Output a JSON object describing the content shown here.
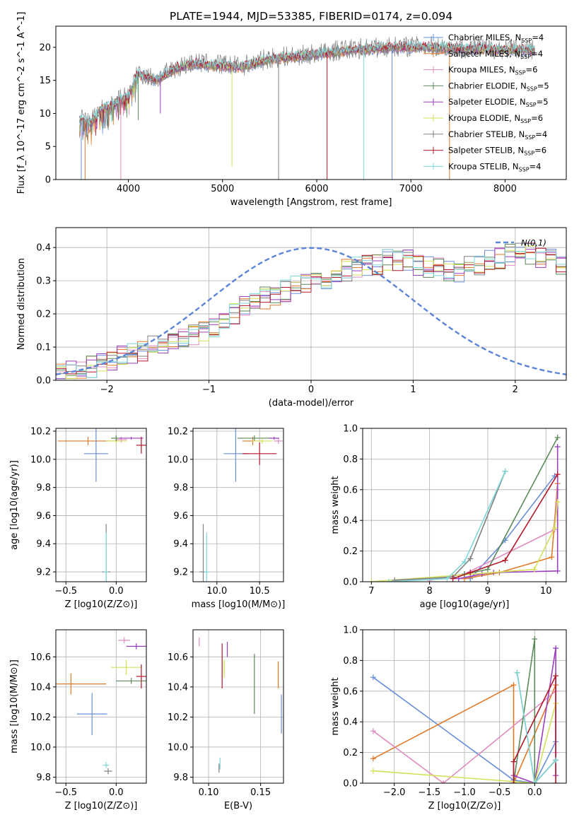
{
  "title": "PLATE=1944, MJD=53385, FIBERID=0174, z=0.094",
  "colors": {
    "Chabrier MILES": "#6a8fd8",
    "Salpeter MILES": "#e07a2a",
    "Kroupa MILES": "#e08cc0",
    "Chabrier ELODIE": "#5a8a5a",
    "Salpeter ELODIE": "#9b3fbf",
    "Kroupa ELODIE": "#d4e05a",
    "Chabrier STELIB": "#808080",
    "Salpeter STELIB": "#b2182b",
    "Kroupa STELIB": "#7fd8d8"
  },
  "chart_data": [
    {
      "id": "spectrum",
      "type": "line",
      "xlabel": "wavelength [Angstrom, rest frame]",
      "ylabel": "Flux [f_λ 10^-17 erg cm^-2 s^-1 A^-1]",
      "xlim": [
        3230,
        8650
      ],
      "ylim": [
        0,
        23.2
      ],
      "xticks": [
        4000,
        5000,
        6000,
        7000,
        8000
      ],
      "yticks": [
        0,
        5,
        10,
        15,
        20
      ],
      "legend_position": "top-right",
      "legend": [
        {
          "model": "Chabrier MILES",
          "label": "Chabrier MILES, N",
          "nssp": "=4"
        },
        {
          "model": "Salpeter MILES",
          "label": "Salpeter MILES, N",
          "nssp": "=4"
        },
        {
          "model": "Kroupa MILES",
          "label": "Kroupa MILES, N",
          "nssp": "=6"
        },
        {
          "model": "Chabrier ELODIE",
          "label": "Chabrier ELODIE, N",
          "nssp": "=5"
        },
        {
          "model": "Salpeter ELODIE",
          "label": "Salpeter ELODIE, N",
          "nssp": "=5"
        },
        {
          "model": "Kroupa ELODIE",
          "label": "Kroupa ELODIE, N",
          "nssp": "=6"
        },
        {
          "model": "Chabrier STELIB",
          "label": "Chabrier STELIB, N",
          "nssp": "=4"
        },
        {
          "model": "Salpeter STELIB",
          "label": "Salpeter STELIB, N",
          "nssp": "=6"
        },
        {
          "model": "Kroupa STELIB",
          "label": "Kroupa STELIB, N",
          "nssp": "=4"
        }
      ],
      "nssp_sub": "SSP",
      "continuum": [
        [
          3480,
          9.0
        ],
        [
          3600,
          8.5
        ],
        [
          3700,
          10.5
        ],
        [
          3800,
          11.0
        ],
        [
          3900,
          12.0
        ],
        [
          4000,
          12.5
        ],
        [
          4100,
          16.0
        ],
        [
          4300,
          15.0
        ],
        [
          4500,
          16.8
        ],
        [
          4700,
          17.5
        ],
        [
          5000,
          17.2
        ],
        [
          5200,
          17.0
        ],
        [
          5500,
          18.2
        ],
        [
          5800,
          18.6
        ],
        [
          6000,
          18.9
        ],
        [
          6300,
          19.5
        ],
        [
          6600,
          19.8
        ],
        [
          6900,
          20.0
        ],
        [
          7200,
          20.0
        ],
        [
          7500,
          19.8
        ],
        [
          7800,
          19.7
        ],
        [
          8100,
          19.6
        ],
        [
          8320,
          19.5
        ]
      ],
      "dips": [
        [
          3500,
          0
        ],
        [
          3540,
          0
        ],
        [
          3920,
          0
        ],
        [
          4105,
          9
        ],
        [
          4340,
          10
        ],
        [
          5100,
          2
        ],
        [
          5595,
          0
        ],
        [
          6110,
          0
        ],
        [
          6500,
          0
        ],
        [
          6800,
          0
        ],
        [
          7410,
          0
        ]
      ]
    },
    {
      "id": "residuals",
      "type": "step",
      "xlabel": "(data-model)/error",
      "ylabel": "Normed distribution",
      "xlim": [
        -2.5,
        2.5
      ],
      "ylim": [
        0,
        0.46
      ],
      "xticks": [
        -2,
        -1,
        0,
        1,
        2
      ],
      "yticks": [
        0.0,
        0.1,
        0.2,
        0.3,
        0.4
      ],
      "reference": {
        "label": "N(0,1)",
        "mean": 0,
        "sigma": 1
      },
      "bin_width": 0.1,
      "envelope": [
        0.02,
        0.03,
        0.03,
        0.04,
        0.05,
        0.06,
        0.07,
        0.08,
        0.09,
        0.1,
        0.11,
        0.12,
        0.13,
        0.14,
        0.15,
        0.16,
        0.18,
        0.2,
        0.22,
        0.24,
        0.25,
        0.26,
        0.27,
        0.28,
        0.29,
        0.3,
        0.31,
        0.32,
        0.33,
        0.34,
        0.35,
        0.35,
        0.36,
        0.36,
        0.36,
        0.35,
        0.34,
        0.34,
        0.33,
        0.33,
        0.34,
        0.35,
        0.36,
        0.37,
        0.38,
        0.38,
        0.38,
        0.37,
        0.36,
        0.35,
        0.35,
        0.35,
        0.36,
        0.37,
        0.37,
        0.36,
        0.35,
        0.34,
        0.33,
        0.32,
        0.3,
        0.29,
        0.27,
        0.26,
        0.25,
        0.24,
        0.22,
        0.2,
        0.19,
        0.18,
        0.17,
        0.15,
        0.14,
        0.13,
        0.12,
        0.11,
        0.1,
        0.09,
        0.08,
        0.07,
        0.07,
        0.06,
        0.06,
        0.05,
        0.05,
        0.05,
        0.05,
        0.05,
        0.05,
        0.05,
        0.06,
        0.06,
        0.07,
        0.07,
        0.08,
        0.08,
        0.08,
        0.07,
        0.07,
        0.06
      ]
    },
    {
      "id": "age_vs_Z",
      "type": "errorbar",
      "xlabel": "Z [log10(Z/Z⊙)]",
      "ylabel": "age  [log10(age/yr)]",
      "xlim": [
        -0.6,
        0.3
      ],
      "ylim": [
        9.13,
        10.22
      ],
      "xticks": [
        -0.5,
        0.0
      ],
      "yticks": [
        9.2,
        9.4,
        9.6,
        9.8,
        10.0,
        10.2
      ],
      "points": [
        {
          "model": "Salpeter MILES",
          "x": -0.28,
          "y": 10.13,
          "xerr": 0.3,
          "yerr": 0.03
        },
        {
          "model": "Chabrier MILES",
          "x": -0.2,
          "y": 10.04,
          "xerr": 0.12,
          "yerr": 0.2
        },
        {
          "model": "Kroupa MILES",
          "x": 0.05,
          "y": 10.14,
          "xerr": 0.06,
          "yerr": 0.02
        },
        {
          "model": "Kroupa ELODIE",
          "x": 0.0,
          "y": 10.13,
          "xerr": 0.1,
          "yerr": 0.02
        },
        {
          "model": "Chabrier ELODIE",
          "x": 0.0,
          "y": 10.15,
          "xerr": 0.05,
          "yerr": 0.02
        },
        {
          "model": "Salpeter ELODIE",
          "x": 0.15,
          "y": 10.15,
          "xerr": 0.12,
          "yerr": 0.01
        },
        {
          "model": "Salpeter STELIB",
          "x": 0.25,
          "y": 10.1,
          "xerr": 0.05,
          "yerr": 0.06
        },
        {
          "model": "Chabrier STELIB",
          "x": -0.1,
          "y": 9.2,
          "xerr": 0.04,
          "yerr": 0.34
        },
        {
          "model": "Kroupa STELIB",
          "x": -0.1,
          "y": 9.2,
          "xerr": 0.02,
          "yerr": 0.28
        }
      ]
    },
    {
      "id": "age_vs_mass",
      "type": "errorbar",
      "xlabel": "mass [log10(M/M⊙)]",
      "ylabel": "",
      "xlim": [
        9.72,
        10.78
      ],
      "ylim": [
        9.13,
        10.22
      ],
      "xticks": [
        10.0,
        10.5
      ],
      "yticks": [
        9.2,
        9.4,
        9.6,
        9.8,
        10.0,
        10.2
      ],
      "points": [
        {
          "model": "Chabrier MILES",
          "x": 10.22,
          "y": 10.04,
          "xerr": 0.14,
          "yerr": 0.2
        },
        {
          "model": "Salpeter MILES",
          "x": 10.42,
          "y": 10.13,
          "xerr": 0.12,
          "yerr": 0.03
        },
        {
          "model": "Kroupa MILES",
          "x": 10.72,
          "y": 10.13,
          "xerr": 0.05,
          "yerr": 0.02
        },
        {
          "model": "Chabrier ELODIE",
          "x": 10.44,
          "y": 10.15,
          "xerr": 0.2,
          "yerr": 0.02
        },
        {
          "model": "Kroupa ELODIE",
          "x": 10.53,
          "y": 10.13,
          "xerr": 0.12,
          "yerr": 0.02
        },
        {
          "model": "Salpeter ELODIE",
          "x": 10.67,
          "y": 10.15,
          "xerr": 0.06,
          "yerr": 0.01
        },
        {
          "model": "Salpeter STELIB",
          "x": 10.5,
          "y": 10.04,
          "xerr": 0.2,
          "yerr": 0.08
        },
        {
          "model": "Chabrier STELIB",
          "x": 9.84,
          "y": 9.2,
          "xerr": 0.04,
          "yerr": 0.34
        },
        {
          "model": "Kroupa STELIB",
          "x": 9.88,
          "y": 9.2,
          "xerr": 0.03,
          "yerr": 0.28
        }
      ]
    },
    {
      "id": "mass_weight_vs_age",
      "type": "line",
      "xlabel": "age  [log10(age/yr)]",
      "ylabel": "mass weight",
      "xlim": [
        6.85,
        10.35
      ],
      "ylim": [
        0,
        1.0
      ],
      "xticks": [
        7,
        8,
        9,
        10
      ],
      "yticks": [
        0.0,
        0.2,
        0.4,
        0.6,
        0.8,
        1.0
      ],
      "series": [
        {
          "model": "Chabrier MILES",
          "x": [
            8.7,
            9.3,
            10.15
          ],
          "y": [
            0.02,
            0.27,
            0.69
          ]
        },
        {
          "model": "Salpeter MILES",
          "x": [
            8.6,
            9.2,
            10.1,
            10.2
          ],
          "y": [
            0.02,
            0.06,
            0.16,
            0.64
          ]
        },
        {
          "model": "Kroupa MILES",
          "x": [
            8.0,
            8.6,
            10.15,
            10.2
          ],
          "y": [
            0.01,
            0.05,
            0.34,
            0.6
          ]
        },
        {
          "model": "Chabrier ELODIE",
          "x": [
            8.6,
            9.0,
            10.2
          ],
          "y": [
            0.05,
            0.08,
            0.94
          ]
        },
        {
          "model": "Salpeter ELODIE",
          "x": [
            8.5,
            8.9,
            9.1,
            10.2,
            10.2
          ],
          "y": [
            0.02,
            0.05,
            0.06,
            0.07,
            0.88
          ]
        },
        {
          "model": "Kroupa ELODIE",
          "x": [
            7.0,
            9.8,
            10.15,
            10.2
          ],
          "y": [
            0.0,
            0.08,
            0.35,
            0.52
          ]
        },
        {
          "model": "Chabrier STELIB",
          "x": [
            7.4,
            8.4,
            8.7,
            9.3
          ],
          "y": [
            0.01,
            0.03,
            0.15,
            0.72
          ]
        },
        {
          "model": "Salpeter STELIB",
          "x": [
            8.4,
            8.7,
            9.3,
            10.2
          ],
          "y": [
            0.02,
            0.06,
            0.14,
            0.7
          ]
        },
        {
          "model": "Kroupa STELIB",
          "x": [
            7.3,
            8.3,
            8.6,
            9.3
          ],
          "y": [
            0.0,
            0.02,
            0.13,
            0.72
          ]
        }
      ]
    },
    {
      "id": "mass_vs_Z",
      "type": "errorbar",
      "xlabel": "Z [log10(Z/Z⊙)]",
      "ylabel": "mass [log10(M/M⊙)]",
      "xlim": [
        -0.6,
        0.3
      ],
      "ylim": [
        9.76,
        10.78
      ],
      "xticks": [
        -0.5,
        0.0
      ],
      "yticks": [
        9.8,
        10.0,
        10.2,
        10.4,
        10.6
      ],
      "points": [
        {
          "model": "Salpeter MILES",
          "x": -0.45,
          "y": 10.42,
          "xerr": 0.35,
          "yerr": 0.07
        },
        {
          "model": "Chabrier MILES",
          "x": -0.24,
          "y": 10.22,
          "xerr": 0.15,
          "yerr": 0.14
        },
        {
          "model": "Kroupa ELODIE",
          "x": 0.1,
          "y": 10.53,
          "xerr": 0.15,
          "yerr": 0.05
        },
        {
          "model": "Chabrier ELODIE",
          "x": 0.15,
          "y": 10.44,
          "xerr": 0.15,
          "yerr": 0.02
        },
        {
          "model": "Kroupa MILES",
          "x": 0.08,
          "y": 10.71,
          "xerr": 0.06,
          "yerr": 0.02
        },
        {
          "model": "Salpeter ELODIE",
          "x": 0.2,
          "y": 10.67,
          "xerr": 0.1,
          "yerr": 0.02
        },
        {
          "model": "Salpeter STELIB",
          "x": 0.25,
          "y": 10.47,
          "xerr": 0.05,
          "yerr": 0.08
        },
        {
          "model": "Kroupa STELIB",
          "x": -0.1,
          "y": 9.88,
          "xerr": 0.03,
          "yerr": 0.02
        },
        {
          "model": "Chabrier STELIB",
          "x": -0.08,
          "y": 9.84,
          "xerr": 0.04,
          "yerr": 0.02
        }
      ]
    },
    {
      "id": "mass_vs_ebv",
      "type": "errorbar",
      "xlabel": "E(B-V)",
      "ylabel": "",
      "xlim": [
        0.085,
        0.172
      ],
      "ylim": [
        9.76,
        10.78
      ],
      "xticks": [
        0.1,
        0.15
      ],
      "yticks": [
        9.8,
        10.0,
        10.2,
        10.4,
        10.6
      ],
      "points": [
        {
          "model": "Kroupa MILES",
          "x": 0.091,
          "y": 10.7,
          "xerr": 0.0,
          "yerr": 0.03
        },
        {
          "model": "Salpeter STELIB",
          "x": 0.113,
          "y": 10.54,
          "xerr": 0.0,
          "yerr": 0.15
        },
        {
          "model": "Kroupa ELODIE",
          "x": 0.115,
          "y": 10.52,
          "xerr": 0.0,
          "yerr": 0.06
        },
        {
          "model": "Salpeter ELODIE",
          "x": 0.118,
          "y": 10.65,
          "xerr": 0.0,
          "yerr": 0.05
        },
        {
          "model": "Chabrier ELODIE",
          "x": 0.144,
          "y": 10.42,
          "xerr": 0.0,
          "yerr": 0.2
        },
        {
          "model": "Salpeter MILES",
          "x": 0.167,
          "y": 10.48,
          "xerr": 0.0,
          "yerr": 0.09
        },
        {
          "model": "Chabrier MILES",
          "x": 0.17,
          "y": 10.22,
          "xerr": 0.0,
          "yerr": 0.13
        },
        {
          "model": "Kroupa STELIB",
          "x": 0.111,
          "y": 9.89,
          "xerr": 0.0,
          "yerr": 0.04
        },
        {
          "model": "Chabrier STELIB",
          "x": 0.11,
          "y": 9.86,
          "xerr": 0.0,
          "yerr": 0.03
        }
      ]
    },
    {
      "id": "mass_weight_vs_Z",
      "type": "line",
      "xlabel": "Z [log10(Z/Z⊙)]",
      "ylabel": "mass weight",
      "xlim": [
        -2.45,
        0.45
      ],
      "ylim": [
        0,
        1.0
      ],
      "xticks": [
        -2.0,
        -1.5,
        -1.0,
        -0.5,
        0.0
      ],
      "yticks": [
        0.0,
        0.2,
        0.4,
        0.6,
        0.8,
        1.0
      ],
      "series": [
        {
          "model": "Chabrier MILES",
          "x": [
            -2.3,
            -0.3,
            0.0,
            0.3
          ],
          "y": [
            0.69,
            0.02,
            0.0,
            0.27
          ]
        },
        {
          "model": "Salpeter MILES",
          "x": [
            -2.3,
            -0.3,
            -0.3,
            0.3
          ],
          "y": [
            0.16,
            0.64,
            0.0,
            0.64
          ]
        },
        {
          "model": "Kroupa MILES",
          "x": [
            -2.3,
            -1.3,
            0.3,
            0.3
          ],
          "y": [
            0.34,
            0.0,
            0.6,
            0.2
          ]
        },
        {
          "model": "Chabrier ELODIE",
          "x": [
            -0.3,
            0.0,
            0.0,
            0.3
          ],
          "y": [
            0.0,
            0.94,
            0.0,
            0.15
          ]
        },
        {
          "model": "Salpeter ELODIE",
          "x": [
            -0.3,
            0.0,
            0.3,
            0.3
          ],
          "y": [
            0.05,
            0.0,
            0.88,
            0.05
          ]
        },
        {
          "model": "Kroupa ELODIE",
          "x": [
            -2.3,
            0.0,
            0.3
          ],
          "y": [
            0.08,
            0.0,
            0.52
          ]
        },
        {
          "model": "Chabrier STELIB",
          "x": [
            -0.25,
            0.0,
            0.3
          ],
          "y": [
            0.72,
            0.0,
            0.15
          ]
        },
        {
          "model": "Salpeter STELIB",
          "x": [
            -0.3,
            -0.3,
            0.3,
            0.3
          ],
          "y": [
            0.0,
            0.14,
            0.7,
            0.0
          ]
        },
        {
          "model": "Kroupa STELIB",
          "x": [
            -0.25,
            0.0,
            0.3
          ],
          "y": [
            0.72,
            0.0,
            0.15
          ]
        }
      ]
    }
  ]
}
